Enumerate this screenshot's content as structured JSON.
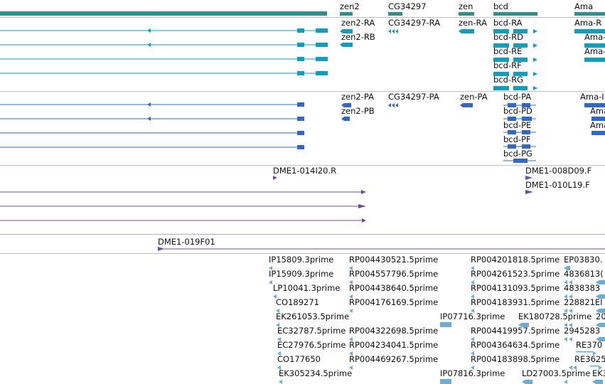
{
  "colors": {
    "gene": "#2f8f8b",
    "transcript": "#0aa0c0",
    "cds": "#2f68c8",
    "clone": "#6c4cb0",
    "est": "#6aaed8",
    "border": "#c0c0c0"
  },
  "gene_track": {
    "labels": [
      "zen2",
      "CG34297",
      "zen",
      "bcd",
      "Ama"
    ]
  },
  "transcript_track": {
    "labels": [
      "zen2-RA",
      "zen2-RB",
      "CG34297-RA",
      "zen-RA",
      "bcd-RA",
      "bcd-RD",
      "bcd-RE",
      "bcd-RF",
      "bcd-RG",
      "Ama-R",
      "Ama-",
      "Ama-"
    ]
  },
  "cds_track": {
    "labels": [
      "zen2-PA",
      "zen2-PB",
      "CG34297-PA",
      "zen-PA",
      "bcd-PA",
      "bcd-PD",
      "bcd-PE",
      "bcd-PF",
      "bcd-PG",
      "Ama-I",
      "Ama",
      "Ama"
    ]
  },
  "clone_track": {
    "labels": [
      "DME1-014I20.R",
      "DME1-008D09.F",
      "DME1-010L19.F"
    ]
  },
  "clone_track_2": {
    "labels": [
      "DME1-019F01"
    ]
  },
  "est_track": {
    "rows": [
      [
        "IP15809.3prime",
        "RP004430521.5prime",
        "RP004201818.5prime",
        "EP03830."
      ],
      [
        "IP15909.3prime",
        "RP004557796.5prime",
        "RP004261523.5prime",
        "4836813("
      ],
      [
        "LP10041.3prime",
        "RP004438640.5prime",
        "RP004131093.5prime",
        "4838383"
      ],
      [
        "CO189271",
        "RP004176169.5prime",
        "RP004183931.5prime",
        "228821EI"
      ],
      [
        "EK261053.5prime",
        "IP07716.3prime",
        "EK180728.5prime",
        "20"
      ],
      [
        "EC32787.5prime",
        "RP004322698.5prime",
        "RP004419957.5prime",
        "2945283"
      ],
      [
        "EC27976.5prime",
        "RP004234041.5prime",
        "RP004364634.5prime",
        "RE370"
      ],
      [
        "CO177650",
        "RP004469267.5prime",
        "RP004183898.5prime",
        "RE3625"
      ],
      [
        "EK305234.5prime",
        "IP07816.3prime",
        "LD27003.5prime",
        "EK3"
      ]
    ]
  }
}
